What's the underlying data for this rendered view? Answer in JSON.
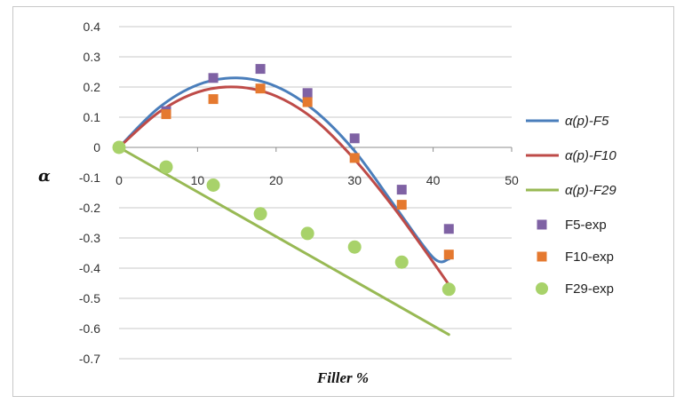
{
  "chart_data": {
    "type": "scatter",
    "title": "",
    "xlabel": "Filler %",
    "ylabel": "α",
    "xlim": [
      0,
      50
    ],
    "ylim": [
      -0.7,
      0.4
    ],
    "x_ticks": [
      0,
      10,
      20,
      30,
      40,
      50
    ],
    "y_ticks": [
      0.4,
      0.3,
      0.2,
      0.1,
      0,
      -0.1,
      -0.2,
      -0.3,
      -0.4,
      -0.5,
      -0.6,
      -0.7
    ],
    "grid": "horizontal",
    "legend_position": "right",
    "lines": [
      {
        "name": "α(p)-F5",
        "color": "#4a7ebb",
        "x": [
          0,
          5,
          10,
          15,
          20,
          25,
          30,
          35,
          40,
          42
        ],
        "y": [
          0,
          0.13,
          0.207,
          0.23,
          0.202,
          0.12,
          -0.012,
          -0.19,
          -0.365,
          -0.37
        ]
      },
      {
        "name": "α(p)-F10",
        "color": "#be4b48",
        "x": [
          0,
          5,
          10,
          15,
          20,
          25,
          30,
          35,
          40,
          42
        ],
        "y": [
          0,
          0.115,
          0.183,
          0.2,
          0.17,
          0.09,
          -0.04,
          -0.2,
          -0.38,
          -0.455
        ]
      },
      {
        "name": "α(p)-F29",
        "color": "#98b954",
        "x": [
          0,
          42
        ],
        "y": [
          0,
          -0.62
        ]
      }
    ],
    "points": [
      {
        "name": "F5-exp",
        "color": "#7f62a4",
        "marker": "square",
        "x": [
          0,
          6,
          12,
          18,
          24,
          30,
          36,
          42
        ],
        "y": [
          0,
          0.12,
          0.23,
          0.26,
          0.18,
          0.03,
          -0.14,
          -0.27
        ]
      },
      {
        "name": "F10-exp",
        "color": "#e5792f",
        "marker": "square",
        "x": [
          0,
          6,
          12,
          18,
          24,
          30,
          36,
          42
        ],
        "y": [
          0,
          0.11,
          0.16,
          0.195,
          0.15,
          -0.035,
          -0.19,
          -0.355
        ]
      },
      {
        "name": "F29-exp",
        "color": "#a8d26a",
        "marker": "circle",
        "x": [
          0,
          6,
          12,
          18,
          24,
          30,
          36,
          42
        ],
        "y": [
          0,
          -0.065,
          -0.125,
          -0.22,
          -0.285,
          -0.33,
          -0.38,
          -0.47
        ]
      }
    ]
  }
}
